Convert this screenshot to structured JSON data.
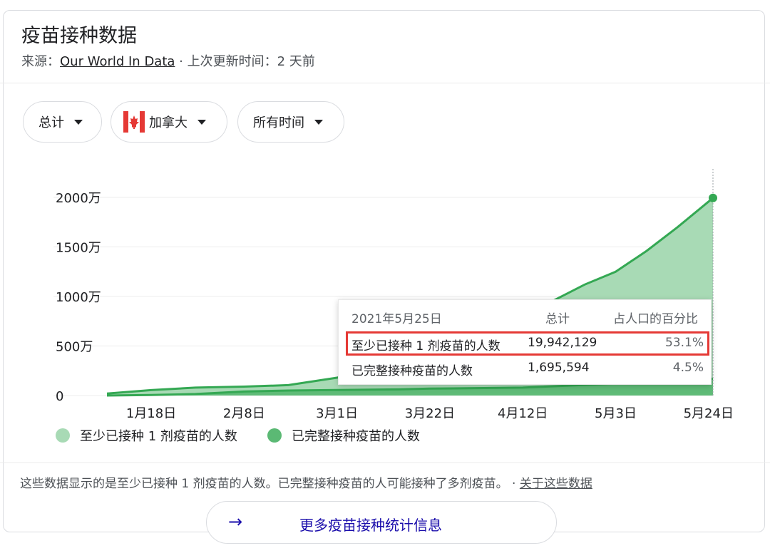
{
  "header": {
    "title": "疫苗接种数据",
    "source_prefix": "来源：",
    "source_link": "Our World In Data",
    "source_suffix": " · 上次更新时间：2 天前"
  },
  "filters": [
    {
      "label": "总计"
    },
    {
      "label": "加拿大",
      "icon": "canada-flag-icon"
    },
    {
      "label": "所有时间"
    }
  ],
  "chart_data": {
    "type": "area",
    "x_labels": [
      "1月18日",
      "2月8日",
      "3月1日",
      "3月22日",
      "4月12日",
      "5月3日",
      "5月24日"
    ],
    "y_ticks": [
      "0",
      "500万",
      "1000万",
      "1500万",
      "2000万"
    ],
    "ylim": [
      0,
      20000000
    ],
    "grid": true,
    "legend_position": "bottom",
    "series": [
      {
        "name": "至少已接种 1 剂疫苗的人数",
        "color": "#a8dab5",
        "points": [
          [
            "2021-01-08",
            200000
          ],
          [
            "2021-01-18",
            550000
          ],
          [
            "2021-01-28",
            800000
          ],
          [
            "2021-02-08",
            900000
          ],
          [
            "2021-02-18",
            1050000
          ],
          [
            "2021-03-01",
            1800000
          ],
          [
            "2021-03-08",
            2500000
          ],
          [
            "2021-03-15",
            3300000
          ],
          [
            "2021-03-22",
            4300000
          ],
          [
            "2021-03-29",
            5200000
          ],
          [
            "2021-04-05",
            6300000
          ],
          [
            "2021-04-12",
            8000000
          ],
          [
            "2021-04-19",
            9600000
          ],
          [
            "2021-04-26",
            11200000
          ],
          [
            "2021-05-03",
            12500000
          ],
          [
            "2021-05-10",
            14600000
          ],
          [
            "2021-05-17",
            17000000
          ],
          [
            "2021-05-25",
            19942129
          ]
        ]
      },
      {
        "name": "已完整接种疫苗的人数",
        "color": "#5bb974",
        "points": [
          [
            "2021-01-08",
            0
          ],
          [
            "2021-01-18",
            50000
          ],
          [
            "2021-01-28",
            150000
          ],
          [
            "2021-02-08",
            400000
          ],
          [
            "2021-02-18",
            500000
          ],
          [
            "2021-03-01",
            560000
          ],
          [
            "2021-03-15",
            620000
          ],
          [
            "2021-03-22",
            700000
          ],
          [
            "2021-04-12",
            800000
          ],
          [
            "2021-05-03",
            1200000
          ],
          [
            "2021-05-25",
            1695594
          ]
        ]
      }
    ]
  },
  "tooltip": {
    "date": "2021年5月25日",
    "col_total": "总计",
    "col_pct": "占人口的百分比",
    "rows": [
      {
        "label": "至少已接种 1 剂疫苗的人数",
        "value": "19,942,129",
        "pct": "53.1%"
      },
      {
        "label": "已完整接种疫苗的人数",
        "value": "1,695,594",
        "pct": "4.5%"
      }
    ]
  },
  "footer": {
    "note": "这些数据显示的是至少已接种 1 剂疫苗的人数。已完整接种疫苗的人可能接种了多剂疫苗。",
    "dot_sep": " · ",
    "about_link": "关于这些数据",
    "more_button": "更多疫苗接种统计信息"
  },
  "colors": {
    "accent": "#34a853",
    "highlight_border": "#e53935",
    "link": "#1a0dab"
  }
}
